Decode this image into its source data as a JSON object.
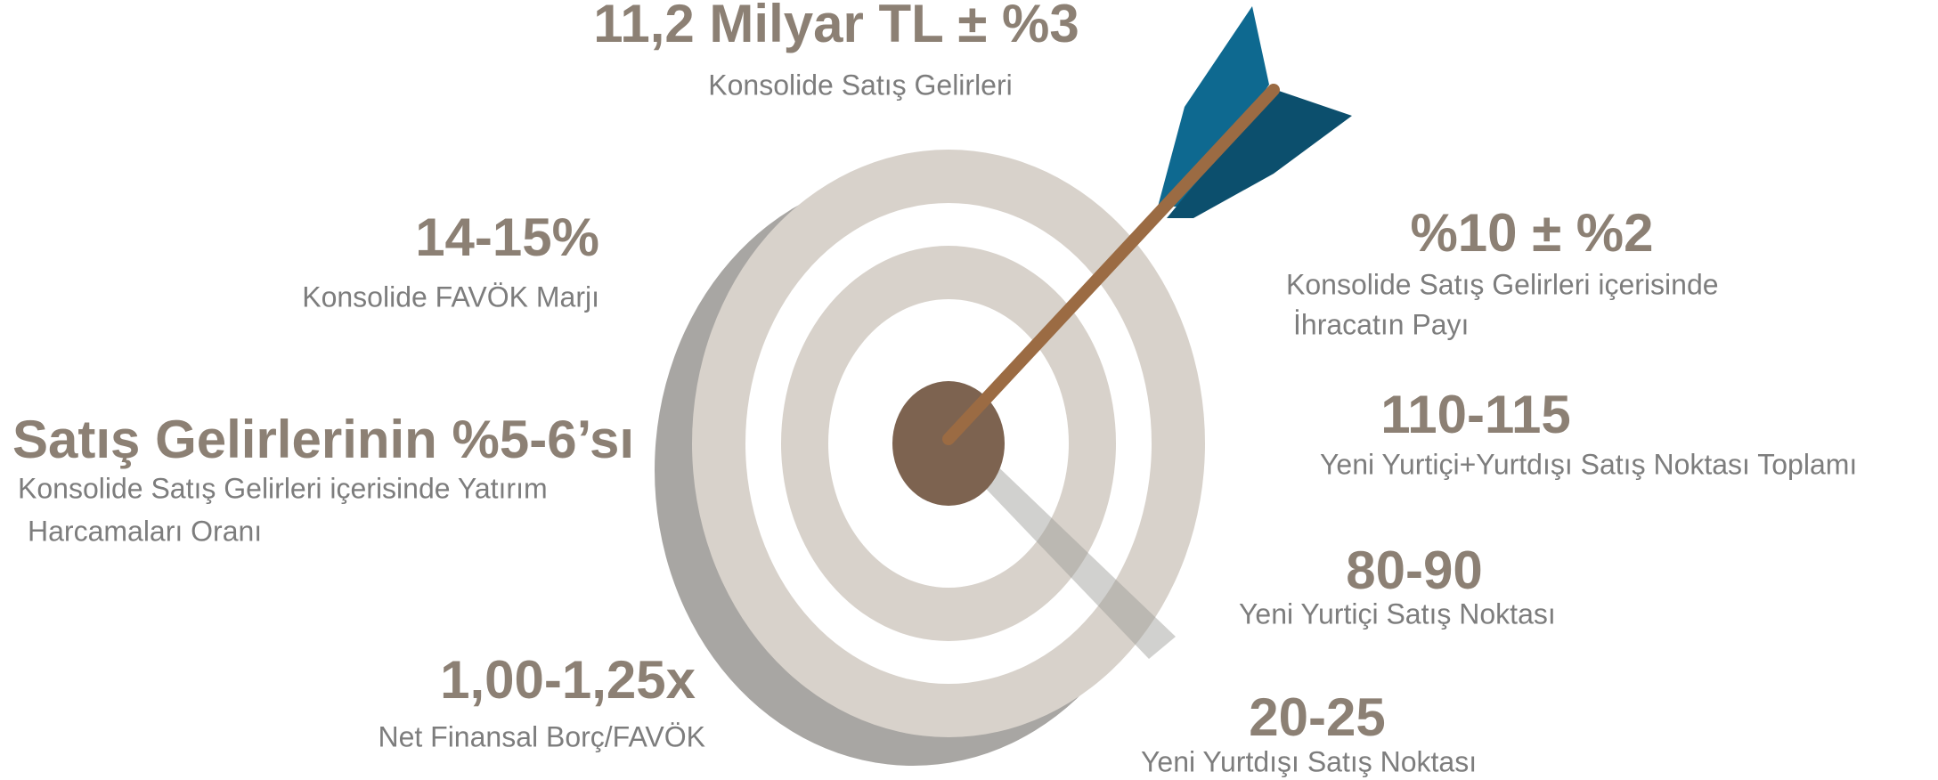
{
  "metrics": [
    {
      "value": "11,2 Milyar TL ± %3",
      "label": [
        "Konsolide Satış Gelirleri"
      ]
    },
    {
      "value": "14-15%",
      "label": [
        "Konsolide FAVÖK Marjı"
      ]
    },
    {
      "value": "Satış Gelirlerinin %5-6’sı",
      "label": [
        "Konsolide Satış Gelirleri içerisinde Yatırım",
        "Harcamaları Oranı"
      ]
    },
    {
      "value": "1,00-1,25x",
      "label": [
        "Net Finansal Borç/FAVÖK"
      ]
    },
    {
      "value": "%10 ± %2",
      "label": [
        "Konsolide Satış Gelirleri içerisinde",
        "İhracatın Payı"
      ]
    },
    {
      "value": "110-115",
      "label": [
        "Yeni Yurtiçi+Yurtdışı Satış Noktası Toplamı"
      ]
    },
    {
      "value": "80-90",
      "label": [
        "Yeni Yurtiçi Satış Noktası"
      ]
    },
    {
      "value": "20-25",
      "label": [
        "Yeni Yurtdışı Satış Noktası"
      ]
    }
  ]
}
